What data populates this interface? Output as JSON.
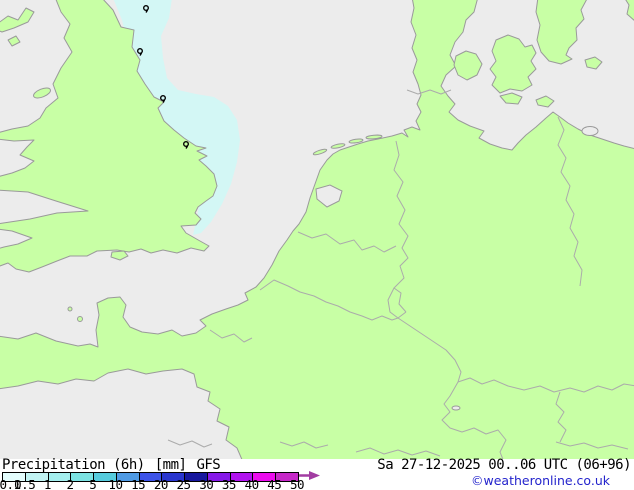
{
  "map": {
    "region": "UK / North Sea / Western Europe",
    "colors": {
      "sea": "#ececec",
      "land": "#c8ffa5",
      "coast": "#9a9a9a",
      "border": "#ababab",
      "precipitation": "#d3f7f5"
    },
    "symbols": [
      {
        "icon": "drizzle-symbol"
      },
      {
        "icon": "drizzle-symbol"
      },
      {
        "icon": "drizzle-symbol"
      },
      {
        "icon": "drizzle-symbol"
      }
    ]
  },
  "legend": {
    "title": "Precipitation (6h)",
    "unit": "[mm]",
    "model": "GFS",
    "datetime": "Sa 27-12-2025 00..06 UTC (06+96)",
    "copyright": "©weatheronline.co.uk",
    "scale": {
      "ticks": [
        "0.1",
        "0.5",
        "1",
        "2",
        "5",
        "10",
        "15",
        "20",
        "25",
        "30",
        "35",
        "40",
        "45",
        "50"
      ],
      "colors": [
        "#e4fdfd",
        "#c2f4f4",
        "#a4eeee",
        "#7ce2e2",
        "#56cbdd",
        "#4f9ae4",
        "#3d53e8",
        "#2a36cf",
        "#17179e",
        "#8619e8",
        "#b113ee",
        "#ec0cee",
        "#c628c8"
      ],
      "arrow_color": "#a23ca2"
    }
  }
}
